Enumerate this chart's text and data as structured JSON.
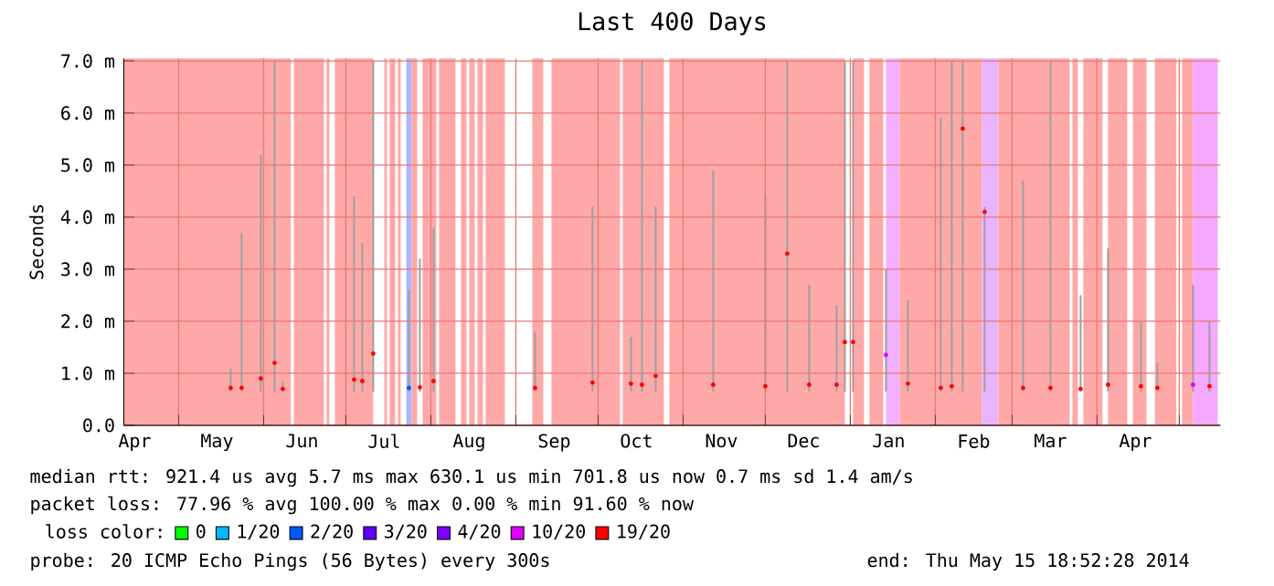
{
  "chart_data": {
    "type": "scatter",
    "title": "Last 400 Days",
    "ylabel": "Seconds",
    "legend_title": "loss color:",
    "legend": "bottom left",
    "grid": true,
    "xlim": [
      "2013-04-11",
      "2014-05-16"
    ],
    "xticks": [
      {
        "value": "2013-04-15",
        "label": "Apr"
      },
      {
        "value": "2013-05-01",
        "label": null
      },
      {
        "value": "2013-05-15",
        "label": "May"
      },
      {
        "value": "2013-06-01",
        "label": null
      },
      {
        "value": "2013-06-15",
        "label": "Jun"
      },
      {
        "value": "2013-07-01",
        "label": null
      },
      {
        "value": "2013-07-15",
        "label": "Jul"
      },
      {
        "value": "2013-08-01",
        "label": null
      },
      {
        "value": "2013-08-15",
        "label": "Aug"
      },
      {
        "value": "2013-09-01",
        "label": null
      },
      {
        "value": "2013-09-15",
        "label": "Sep"
      },
      {
        "value": "2013-10-01",
        "label": null
      },
      {
        "value": "2013-10-15",
        "label": "Oct"
      },
      {
        "value": "2013-11-01",
        "label": null
      },
      {
        "value": "2013-11-15",
        "label": "Nov"
      },
      {
        "value": "2013-12-01",
        "label": null
      },
      {
        "value": "2013-12-15",
        "label": "Dec"
      },
      {
        "value": "2014-01-01",
        "label": null
      },
      {
        "value": "2014-01-15",
        "label": "Jan"
      },
      {
        "value": "2014-02-01",
        "label": null
      },
      {
        "value": "2014-02-15",
        "label": "Feb"
      },
      {
        "value": "2014-03-01",
        "label": null
      },
      {
        "value": "2014-03-15",
        "label": "Mar"
      },
      {
        "value": "2014-04-01",
        "label": null
      },
      {
        "value": "2014-04-15",
        "label": "Apr"
      },
      {
        "value": "2014-05-01",
        "label": null
      }
    ],
    "ylim": [
      0,
      7.05
    ],
    "yticks": [
      {
        "value": 0,
        "label": "0.0"
      },
      {
        "value": 1,
        "label": "1.0 m"
      },
      {
        "value": 2,
        "label": "2.0 m"
      },
      {
        "value": 3,
        "label": "3.0 m"
      },
      {
        "value": 4,
        "label": "4.0 m"
      },
      {
        "value": 5,
        "label": "5.0 m"
      },
      {
        "value": 6,
        "label": "6.0 m"
      },
      {
        "value": 7,
        "label": "7.0 m"
      }
    ],
    "bands": [
      {
        "axis": "x",
        "from": "2013-04-11",
        "to": "2013-06-11",
        "color": "#ffa8a8"
      },
      {
        "axis": "x",
        "from": "2013-06-12",
        "to": "2013-06-23",
        "color": "#ffa8a8"
      },
      {
        "axis": "x",
        "from": "2013-06-24",
        "to": "2013-06-25",
        "color": "#ffa8a8"
      },
      {
        "axis": "x",
        "from": "2013-06-27",
        "to": "2013-07-11",
        "color": "#ffa8a8"
      },
      {
        "axis": "x",
        "from": "2013-07-15",
        "to": "2013-07-16",
        "color": "#ffa8a8"
      },
      {
        "axis": "x",
        "from": "2013-07-17",
        "to": "2013-07-19",
        "color": "#ffa8a8"
      },
      {
        "axis": "x",
        "from": "2013-07-20",
        "to": "2013-07-21",
        "color": "#ffa8a8"
      },
      {
        "axis": "x",
        "from": "2013-07-23",
        "to": "2013-07-25",
        "color": "#aab4ff"
      },
      {
        "axis": "x",
        "from": "2013-07-25",
        "to": "2013-07-27",
        "color": "#ffa8a8"
      },
      {
        "axis": "x",
        "from": "2013-07-29",
        "to": "2013-08-03",
        "color": "#ffa8a8"
      },
      {
        "axis": "x",
        "from": "2013-08-04",
        "to": "2013-08-10",
        "color": "#ffa8a8"
      },
      {
        "axis": "x",
        "from": "2013-08-12",
        "to": "2013-08-14",
        "color": "#ffa8a8"
      },
      {
        "axis": "x",
        "from": "2013-08-15",
        "to": "2013-08-17",
        "color": "#ffa8a8"
      },
      {
        "axis": "x",
        "from": "2013-08-18",
        "to": "2013-08-20",
        "color": "#ffa8a8"
      },
      {
        "axis": "x",
        "from": "2013-08-21",
        "to": "2013-08-28",
        "color": "#ffa8a8"
      },
      {
        "axis": "x",
        "from": "2013-09-07",
        "to": "2013-09-11",
        "color": "#ffa8a8"
      },
      {
        "axis": "x",
        "from": "2013-09-14",
        "to": "2013-10-09",
        "color": "#ffa8a8"
      },
      {
        "axis": "x",
        "from": "2013-10-10",
        "to": "2013-10-25",
        "color": "#ffa8a8"
      },
      {
        "axis": "x",
        "from": "2013-10-27",
        "to": "2013-12-30",
        "color": "#ffa8a8"
      },
      {
        "axis": "x",
        "from": "2014-01-02",
        "to": "2014-01-06",
        "color": "#ffa8a8"
      },
      {
        "axis": "x",
        "from": "2014-01-08",
        "to": "2014-01-13",
        "color": "#ffa8a8"
      },
      {
        "axis": "x",
        "from": "2014-01-14",
        "to": "2014-01-19",
        "color": "#f4b0ff"
      },
      {
        "axis": "x",
        "from": "2014-01-19",
        "to": "2014-02-18",
        "color": "#ffa8a8"
      },
      {
        "axis": "x",
        "from": "2014-02-18",
        "to": "2014-02-24",
        "color": "#e8b4ff"
      },
      {
        "axis": "x",
        "from": "2014-02-24",
        "to": "2014-03-22",
        "color": "#ffa8a8"
      },
      {
        "axis": "x",
        "from": "2014-03-23",
        "to": "2014-03-25",
        "color": "#ffa8a8"
      },
      {
        "axis": "x",
        "from": "2014-03-27",
        "to": "2014-04-03",
        "color": "#ffa8a8"
      },
      {
        "axis": "x",
        "from": "2014-04-05",
        "to": "2014-04-12",
        "color": "#ffa8a8"
      },
      {
        "axis": "x",
        "from": "2014-04-14",
        "to": "2014-04-19",
        "color": "#ffa8a8"
      },
      {
        "axis": "x",
        "from": "2014-04-22",
        "to": "2014-04-30",
        "color": "#ffa8a8"
      },
      {
        "axis": "x",
        "from": "2014-05-02",
        "to": "2014-05-06",
        "color": "#ffa8a8"
      },
      {
        "axis": "x",
        "from": "2014-05-06",
        "to": "2014-05-15",
        "color": "#f4a8ff"
      }
    ],
    "series": [
      {
        "type": "bar",
        "color": "#a0a0a0",
        "x": [
          "2013-05-20",
          "2013-05-24",
          "2013-05-31",
          "2013-06-05",
          "2013-06-08",
          "2013-07-04",
          "2013-07-07",
          "2013-07-11",
          "2013-07-24",
          "2013-07-28",
          "2013-08-02",
          "2013-09-08",
          "2013-09-29",
          "2013-10-13",
          "2013-10-17",
          "2013-10-22",
          "2013-11-12",
          "2013-12-01",
          "2013-12-09",
          "2013-12-17",
          "2013-12-27",
          "2013-12-30",
          "2014-01-02",
          "2014-01-14",
          "2014-01-22",
          "2014-02-03",
          "2014-02-07",
          "2014-02-11",
          "2014-02-19",
          "2014-03-05",
          "2014-03-15",
          "2014-03-26",
          "2014-04-05",
          "2014-04-17",
          "2014-04-23",
          "2014-05-06",
          "2014-05-12"
        ],
        "base": [
          0.65,
          0.65,
          0.65,
          0.65,
          0.65,
          0.65,
          0.65,
          0.65,
          0.65,
          0.65,
          0.65,
          0.65,
          0.65,
          0.65,
          0.65,
          0.65,
          0.65,
          0.65,
          0.65,
          0.65,
          0.65,
          0.65,
          0.65,
          0.65,
          0.65,
          0.65,
          0.65,
          0.65,
          0.65,
          0.65,
          0.65,
          0.65,
          0.65,
          0.65,
          0.65,
          0.65,
          0.65
        ],
        "values": [
          0.45,
          3.05,
          4.55,
          6.35,
          0.2,
          3.75,
          2.85,
          6.35,
          1.95,
          2.55,
          3.15,
          1.15,
          3.55,
          1.05,
          6.35,
          3.55,
          4.25,
          3.75,
          6.35,
          2.05,
          1.65,
          6.35,
          6.35,
          2.35,
          1.75,
          5.25,
          6.35,
          6.35,
          3.55,
          4.05,
          6.35,
          1.85,
          2.75,
          1.35,
          0.55,
          2.05,
          1.35
        ]
      },
      {
        "name": "0",
        "color": "#00ff00"
      },
      {
        "name": "1/20",
        "color": "#00b8ff"
      },
      {
        "name": "2/20",
        "color": "#0059ff",
        "x": [
          "2013-07-24"
        ],
        "values": [
          0.72
        ]
      },
      {
        "name": "3/20",
        "color": "#5e00ff"
      },
      {
        "name": "4/20",
        "color": "#7e00ff"
      },
      {
        "name": "10/20",
        "color": "#dd00ff",
        "x": [
          "2014-01-14",
          "2014-05-06"
        ],
        "values": [
          1.35,
          0.78
        ]
      },
      {
        "name": "19/20",
        "color": "#ff0000",
        "x": [
          "2013-05-20",
          "2013-05-24",
          "2013-05-31",
          "2013-06-05",
          "2013-06-08",
          "2013-07-04",
          "2013-07-07",
          "2013-07-11",
          "2013-07-28",
          "2013-08-02",
          "2013-09-08",
          "2013-09-29",
          "2013-10-13",
          "2013-10-17",
          "2013-10-22",
          "2013-11-12",
          "2013-12-01",
          "2013-12-09",
          "2013-12-17",
          "2013-12-27",
          "2013-12-30",
          "2014-01-02",
          "2014-01-22",
          "2014-02-03",
          "2014-02-07",
          "2014-02-11",
          "2014-02-19",
          "2014-03-05",
          "2014-03-15",
          "2014-03-26",
          "2014-04-05",
          "2014-04-17",
          "2014-04-23",
          "2014-05-12"
        ],
        "values": [
          0.72,
          0.72,
          0.9,
          1.2,
          0.7,
          0.88,
          0.85,
          1.38,
          0.73,
          0.85,
          0.72,
          0.82,
          0.8,
          0.78,
          0.95,
          0.78,
          0.75,
          3.3,
          0.78,
          0.78,
          1.6,
          1.6,
          0.8,
          0.72,
          0.75,
          5.7,
          4.1,
          0.72,
          0.72,
          0.7,
          0.78,
          0.75,
          0.72,
          0.75
        ]
      }
    ],
    "annotations": [
      "median rtt:  921.4 us avg  5.7 ms max  630.1 us min  701.8 us now  0.7 ms sd  1.4   am/s",
      "packet loss: 77.96 % avg  100.00 % max  0.00 % min  91.60 % now",
      "probe:        20 ICMP Echo Pings (56 Bytes) every 300s",
      "end: Thu May 15 18:52:28 2014"
    ]
  }
}
